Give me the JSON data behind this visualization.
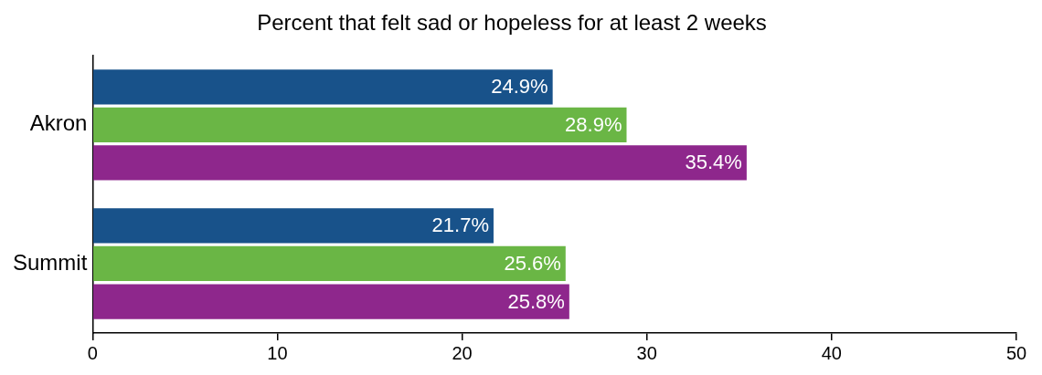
{
  "chart_data": {
    "type": "bar",
    "orientation": "horizontal",
    "title": "Percent that felt sad or hopeless for at least 2 weeks",
    "categories": [
      "Akron",
      "Summit"
    ],
    "series": [
      {
        "color": "#18528a",
        "values": [
          24.9,
          21.7
        ],
        "value_labels": [
          "24.9%",
          "21.7%"
        ]
      },
      {
        "color": "#6ab645",
        "values": [
          28.9,
          25.6
        ],
        "value_labels": [
          "28.9%",
          "25.6%"
        ]
      },
      {
        "color": "#8e278c",
        "values": [
          35.4,
          25.8
        ],
        "value_labels": [
          "35.4%",
          "25.8%"
        ]
      }
    ],
    "xlim": [
      0,
      50
    ],
    "xticks": [
      0,
      10,
      20,
      30,
      40,
      50
    ],
    "grid": false,
    "legend": false
  }
}
